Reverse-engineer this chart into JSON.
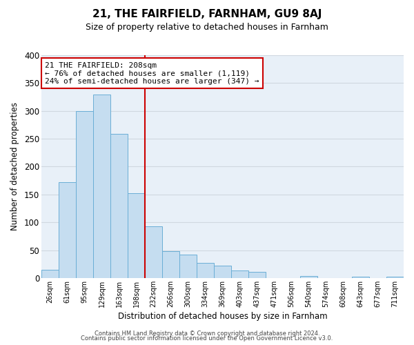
{
  "title": "21, THE FAIRFIELD, FARNHAM, GU9 8AJ",
  "subtitle": "Size of property relative to detached houses in Farnham",
  "xlabel": "Distribution of detached houses by size in Farnham",
  "ylabel": "Number of detached properties",
  "bar_labels": [
    "26sqm",
    "61sqm",
    "95sqm",
    "129sqm",
    "163sqm",
    "198sqm",
    "232sqm",
    "266sqm",
    "300sqm",
    "334sqm",
    "369sqm",
    "403sqm",
    "437sqm",
    "471sqm",
    "506sqm",
    "540sqm",
    "574sqm",
    "608sqm",
    "643sqm",
    "677sqm",
    "711sqm"
  ],
  "bar_values": [
    15,
    172,
    300,
    330,
    259,
    152,
    93,
    48,
    42,
    27,
    22,
    13,
    11,
    0,
    0,
    3,
    0,
    0,
    2,
    0,
    2
  ],
  "bar_color": "#c5ddf0",
  "bar_edge_color": "#6aaed6",
  "vline_x": 5.5,
  "vline_color": "#cc0000",
  "ylim": [
    0,
    400
  ],
  "yticks": [
    0,
    50,
    100,
    150,
    200,
    250,
    300,
    350,
    400
  ],
  "annotation_title": "21 THE FAIRFIELD: 208sqm",
  "annotation_line1": "← 76% of detached houses are smaller (1,119)",
  "annotation_line2": "24% of semi-detached houses are larger (347) →",
  "annotation_box_color": "#ffffff",
  "annotation_box_edge": "#cc0000",
  "footer_line1": "Contains HM Land Registry data © Crown copyright and database right 2024.",
  "footer_line2": "Contains public sector information licensed under the Open Government Licence v3.0.",
  "grid_color": "#d0d8e0",
  "background_color": "#e8f0f8"
}
